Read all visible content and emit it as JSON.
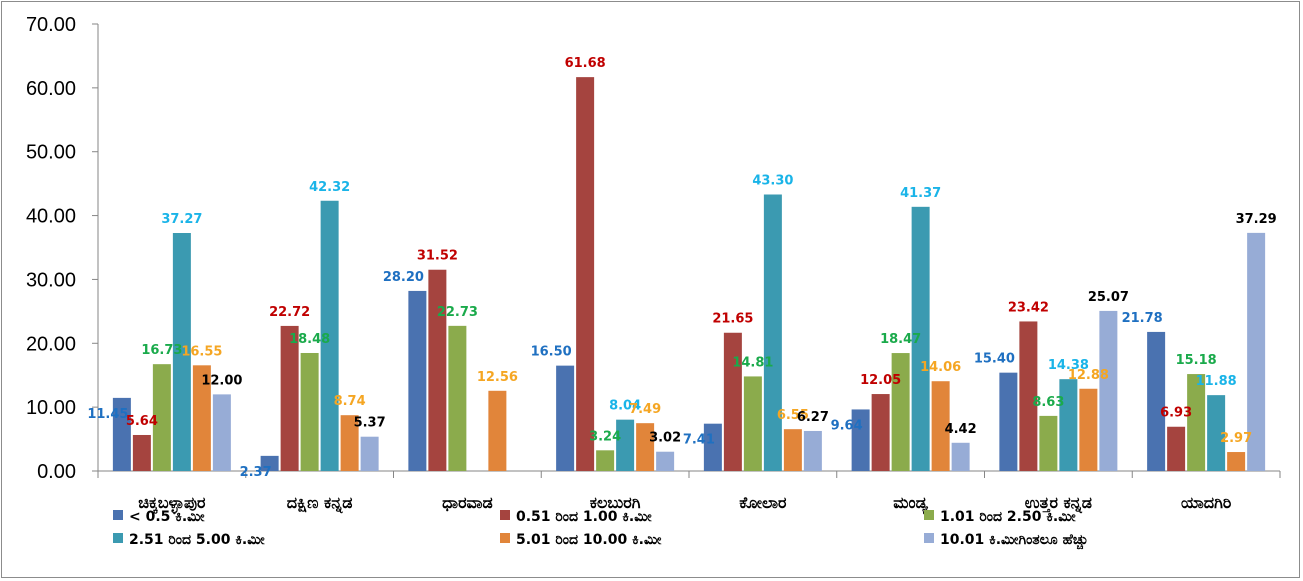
{
  "chart_data": {
    "type": "bar",
    "categories": [
      "ಚಿಕ್ಕಬಳ್ಳಾಪುರ",
      "ದಕ್ಷಿಣ ಕನ್ನಡ",
      "ಧಾರವಾಡ",
      "ಕಲಬುರಗಿ",
      "ಕೋಲಾರ",
      "ಮಂಡ್ಯ",
      "ಉತ್ತರ ಕನ್ನಡ",
      "ಯಾದಗಿರಿ"
    ],
    "ylim": [
      0,
      70
    ],
    "yticks": [
      "0.00",
      "10.00",
      "20.00",
      "30.00",
      "40.00",
      "50.00",
      "60.00",
      "70.00"
    ],
    "legend_position": "bottom",
    "series": [
      {
        "name": "< 0.5 ಕಿ.ಮೀ",
        "color": "#4a72b0",
        "label_color": "#1f70c1",
        "values": [
          11.45,
          2.37,
          28.2,
          16.5,
          7.41,
          9.64,
          15.4,
          21.78
        ],
        "labels": [
          "11.45",
          "2.37",
          "28.20",
          "16.50",
          "7.41",
          "9.64",
          "15.40",
          "21.78"
        ]
      },
      {
        "name": "0.51 ರಿಂದ 1.00 ಕಿ.ಮೀ",
        "color": "#a5443f",
        "label_color": "#c00000",
        "values": [
          5.64,
          22.72,
          31.52,
          61.68,
          21.65,
          12.05,
          23.42,
          6.93
        ],
        "labels": [
          "5.64",
          "22.72",
          "31.52",
          "61.68",
          "21.65",
          "12.05",
          "23.42",
          "6.93"
        ]
      },
      {
        "name": "1.01 ರಿಂದ 2.50 ಕಿ.ಮೀ",
        "color": "#8bab4c",
        "label_color": "#1aaa4b",
        "values": [
          16.73,
          18.48,
          22.73,
          3.24,
          14.81,
          18.47,
          8.63,
          15.18
        ],
        "labels": [
          "16.73",
          "18.48",
          "22.73",
          "3.24",
          "14.81",
          "18.47",
          "8.63",
          "15.18"
        ]
      },
      {
        "name": "2.51 ರಿಂದ 5.00 ಕಿ.ಮೀ",
        "color": "#3b9ab1",
        "label_color": "#1ab4e8",
        "values": [
          37.27,
          42.32,
          null,
          8.04,
          43.3,
          41.37,
          14.38,
          11.88
        ],
        "labels": [
          "37.27",
          "42.32",
          "",
          "8.04",
          "43.30",
          "41.37",
          "14.38",
          "11.88"
        ]
      },
      {
        "name": "5.01 ರಿಂದ 10.00 ಕಿ.ಮೀ",
        "color": "#e1853a",
        "label_color": "#f5a623",
        "values": [
          16.55,
          8.74,
          12.56,
          7.49,
          6.55,
          14.06,
          12.88,
          2.97
        ],
        "labels": [
          "16.55",
          "8.74",
          "12.56",
          "7.49",
          "6.55",
          "14.06",
          "12.88",
          "2.97"
        ]
      },
      {
        "name": "10.01 ಕಿ.ಮೀಗಿಂತಲೂ ಹೆಚ್ಚು",
        "color": "#97acd6",
        "label_color": "#000000",
        "values": [
          12.0,
          5.37,
          null,
          3.02,
          6.27,
          4.42,
          25.07,
          37.29
        ],
        "labels": [
          "12.00",
          "5.37",
          "",
          "3.02",
          "6.27",
          "4.42",
          "25.07",
          "37.29"
        ]
      }
    ]
  }
}
